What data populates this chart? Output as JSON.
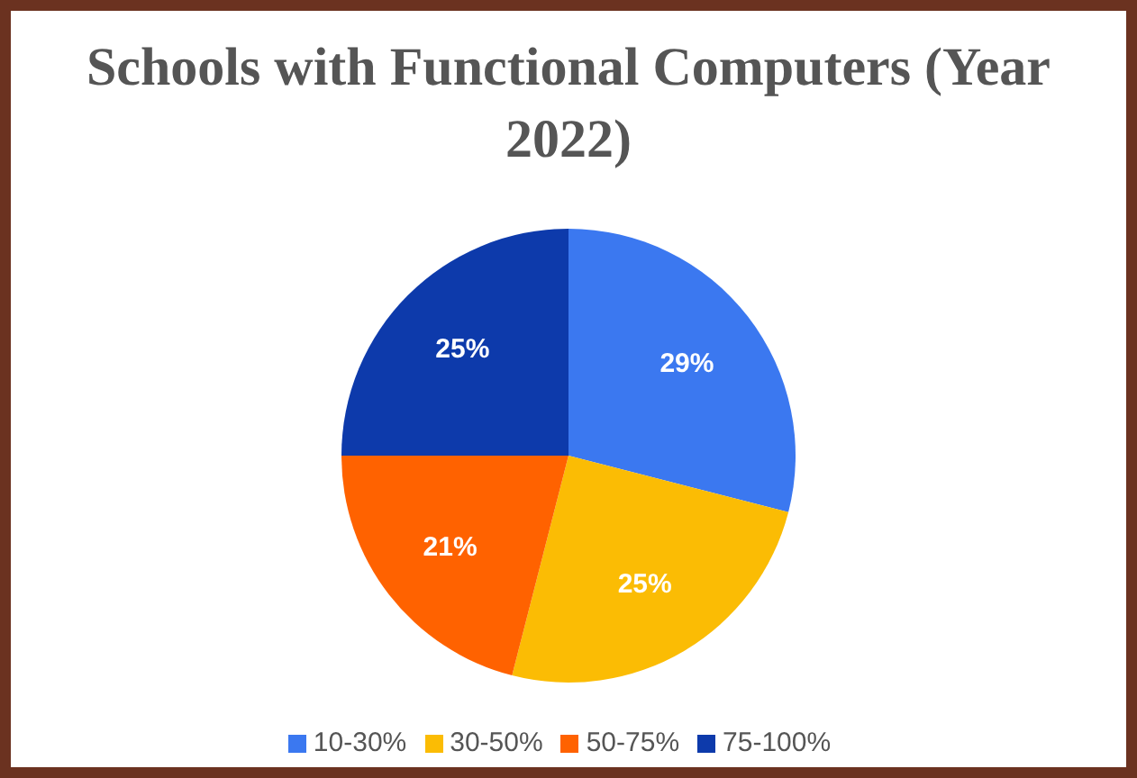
{
  "chart_data": {
    "type": "pie",
    "title": "Schools with Functional Computers (Year 2022)",
    "categories": [
      "10-30%",
      "30-50%",
      "50-75%",
      "75-100%"
    ],
    "values": [
      29,
      25,
      21,
      25
    ],
    "colors": [
      "#3b78f0",
      "#fbbc04",
      "#ff6200",
      "#0d3aab"
    ],
    "value_labels": [
      "29%",
      "25%",
      "21%",
      "25%"
    ],
    "legend": "bottom"
  }
}
